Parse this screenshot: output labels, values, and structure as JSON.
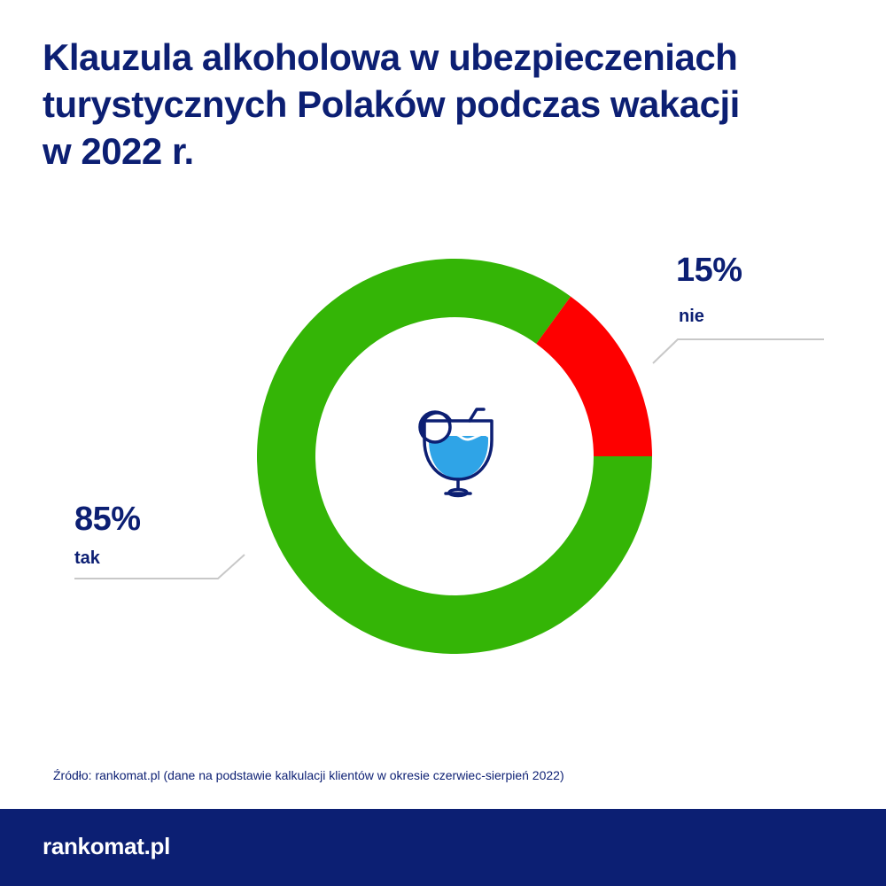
{
  "title": {
    "line1": "Klauzula alkoholowa w ubezpieczeniach",
    "line2": "turystycznych Polaków podczas wakacji",
    "line3": "w 2022 r."
  },
  "chart_data": {
    "type": "pie",
    "variant": "donut",
    "title": "Klauzula alkoholowa w ubezpieczeniach turystycznych Polaków podczas wakacji w 2022 r.",
    "slices": [
      {
        "label": "tak",
        "value": 85,
        "value_label": "85%",
        "color": "#34b506"
      },
      {
        "label": "nie",
        "value": 15,
        "value_label": "15%",
        "color": "#fe0000"
      }
    ],
    "center_icon": "cocktail-glass-icon"
  },
  "labels": {
    "tak_pct": "85%",
    "tak_name": "tak",
    "nie_pct": "15%",
    "nie_name": "nie"
  },
  "source": "Źródło: rankomat.pl (dane na podstawie kalkulacji klientów w okresie czerwiec-sierpień 2022)",
  "footer": {
    "logo": "rankomat.pl"
  },
  "colors": {
    "navy": "#0c1f73",
    "green": "#34b506",
    "red": "#fe0000",
    "glass_fill": "#2fa4e7",
    "leader": "#c8c8c8"
  }
}
